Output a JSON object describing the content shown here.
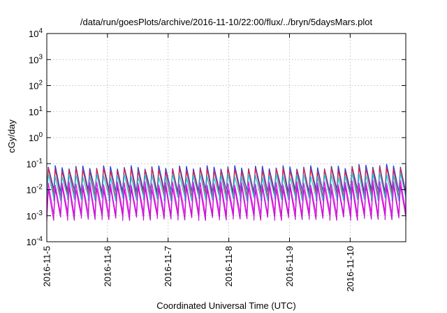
{
  "chart_data": {
    "type": "line",
    "title": "/data/run/goesPlots/archive/2016-11-10/22:00/flux/../bryn/5daysMars.plot",
    "xlabel": "Coordinated Universal Time (UTC)",
    "ylabel": "cGy/day",
    "yscale": "log",
    "ylim": [
      0.0001,
      10000
    ],
    "y_ticks": [
      {
        "value": 0.0001,
        "base": "10",
        "exp": "-4"
      },
      {
        "value": 0.001,
        "base": "10",
        "exp": "-3"
      },
      {
        "value": 0.01,
        "base": "10",
        "exp": "-2"
      },
      {
        "value": 0.1,
        "base": "10",
        "exp": "-1"
      },
      {
        "value": 1,
        "base": "10",
        "exp": "0"
      },
      {
        "value": 10,
        "base": "10",
        "exp": "1"
      },
      {
        "value": 100,
        "base": "10",
        "exp": "2"
      },
      {
        "value": 1000,
        "base": "10",
        "exp": "3"
      },
      {
        "value": 10000,
        "base": "10",
        "exp": "4"
      }
    ],
    "xlim": [
      "2016-11-05T00:00",
      "2016-11-10T22:00"
    ],
    "x_ticks": [
      "2016-11-5",
      "2016-11-6",
      "2016-11-7",
      "2016-11-8",
      "2016-11-9",
      "2016-11-10"
    ],
    "grid": true,
    "pattern": "sawtooth",
    "cycles_per_day": 8.8,
    "series": [
      {
        "color": "#1f3fd9",
        "peak": 0.075,
        "trough": 0.009
      },
      {
        "color": "#e0203a",
        "peak": 0.06,
        "trough": 0.006
      },
      {
        "color": "#18c8d8",
        "peak": 0.035,
        "trough": 0.0045
      },
      {
        "color": "#ee10ee",
        "peak": 0.018,
        "trough": 0.0012
      },
      {
        "color": "#c010d0",
        "peak": 0.012,
        "trough": 0.0008
      }
    ]
  }
}
